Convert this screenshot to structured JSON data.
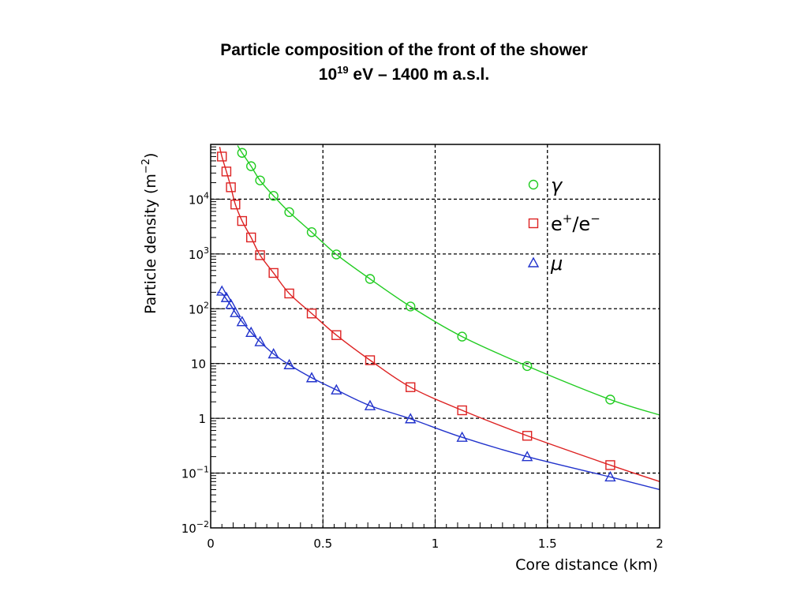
{
  "title_line1": "Particle composition of the front of the shower",
  "title_line2": {
    "base": "10",
    "exp": "19",
    "rest": " eV – 1400 m a.s.l."
  },
  "chart_data": {
    "type": "scatter",
    "xlabel": "Core distance (km)",
    "ylabel": "Particle density (m",
    "ylabel_exp": "−2",
    "ylabel_close": ")",
    "xlim": [
      0,
      2
    ],
    "ylim": [
      0.01,
      100000
    ],
    "yscale": "log",
    "grid": true,
    "legend_placement": "top-right",
    "x_ticks": [
      {
        "value": 0,
        "label": "0"
      },
      {
        "value": 0.5,
        "label": "0.5"
      },
      {
        "value": 1,
        "label": "1"
      },
      {
        "value": 1.5,
        "label": "1.5"
      },
      {
        "value": 2,
        "label": "2"
      }
    ],
    "y_ticks": [
      {
        "value": 0.01,
        "base": "10",
        "exp": "−2"
      },
      {
        "value": 0.1,
        "base": "10",
        "exp": "−1"
      },
      {
        "value": 1,
        "base": "1",
        "exp": ""
      },
      {
        "value": 10,
        "base": "10",
        "exp": ""
      },
      {
        "value": 100,
        "base": "10",
        "exp": "2"
      },
      {
        "value": 1000,
        "base": "10",
        "exp": "3"
      },
      {
        "value": 10000,
        "base": "10",
        "exp": "4"
      }
    ],
    "series": [
      {
        "name": "γ",
        "marker": "circle",
        "color": "#22cc22",
        "x": [
          0.14,
          0.18,
          0.22,
          0.28,
          0.35,
          0.45,
          0.56,
          0.71,
          0.89,
          1.12,
          1.41,
          1.78
        ],
        "y": [
          70000,
          40000,
          22000,
          11500,
          5800,
          2500,
          980,
          350,
          110,
          31,
          9,
          2.2
        ],
        "curve_x": [
          0.12,
          0.14,
          0.18,
          0.22,
          0.28,
          0.35,
          0.45,
          0.56,
          0.71,
          0.89,
          1.12,
          1.41,
          1.78,
          2.0
        ],
        "curve_y": [
          95000,
          70000,
          40000,
          22000,
          11500,
          5800,
          2500,
          980,
          350,
          110,
          31,
          9,
          2.2,
          1.15
        ]
      },
      {
        "name": "e+/e−",
        "label_parts": {
          "a": "e",
          "a_sup": "+",
          "sep": "/e",
          "b_sup": "−"
        },
        "marker": "square",
        "color": "#dd2222",
        "x": [
          0.05,
          0.07,
          0.09,
          0.11,
          0.14,
          0.18,
          0.22,
          0.28,
          0.35,
          0.45,
          0.56,
          0.71,
          0.89,
          1.12,
          1.41,
          1.78
        ],
        "y": [
          60000,
          32000,
          16500,
          8000,
          4000,
          2000,
          950,
          450,
          190,
          82,
          33,
          11.5,
          3.7,
          1.4,
          0.48,
          0.14
        ],
        "curve_x": [
          0.04,
          0.05,
          0.07,
          0.09,
          0.11,
          0.14,
          0.18,
          0.22,
          0.28,
          0.35,
          0.45,
          0.56,
          0.71,
          0.89,
          1.12,
          1.41,
          1.78,
          2.0
        ],
        "curve_y": [
          90000,
          60000,
          32000,
          16500,
          8000,
          4000,
          2000,
          950,
          450,
          190,
          82,
          33,
          11.5,
          3.7,
          1.4,
          0.48,
          0.14,
          0.07
        ]
      },
      {
        "name": "μ",
        "marker": "triangle",
        "color": "#2233cc",
        "x": [
          0.05,
          0.07,
          0.09,
          0.11,
          0.14,
          0.18,
          0.22,
          0.28,
          0.35,
          0.45,
          0.56,
          0.71,
          0.89,
          1.12,
          1.41,
          1.78
        ],
        "y": [
          210,
          160,
          120,
          85,
          58,
          37,
          25,
          15,
          9.5,
          5.5,
          3.3,
          1.7,
          0.98,
          0.45,
          0.2,
          0.085
        ],
        "curve_x": [
          0.03,
          0.05,
          0.07,
          0.09,
          0.11,
          0.14,
          0.18,
          0.22,
          0.28,
          0.35,
          0.45,
          0.56,
          0.71,
          0.89,
          1.12,
          1.41,
          1.78,
          2.0
        ],
        "curve_y": [
          200,
          190,
          150,
          115,
          85,
          58,
          37,
          25,
          15,
          9.5,
          5.5,
          3.3,
          1.7,
          0.98,
          0.45,
          0.2,
          0.085,
          0.05
        ]
      }
    ]
  }
}
